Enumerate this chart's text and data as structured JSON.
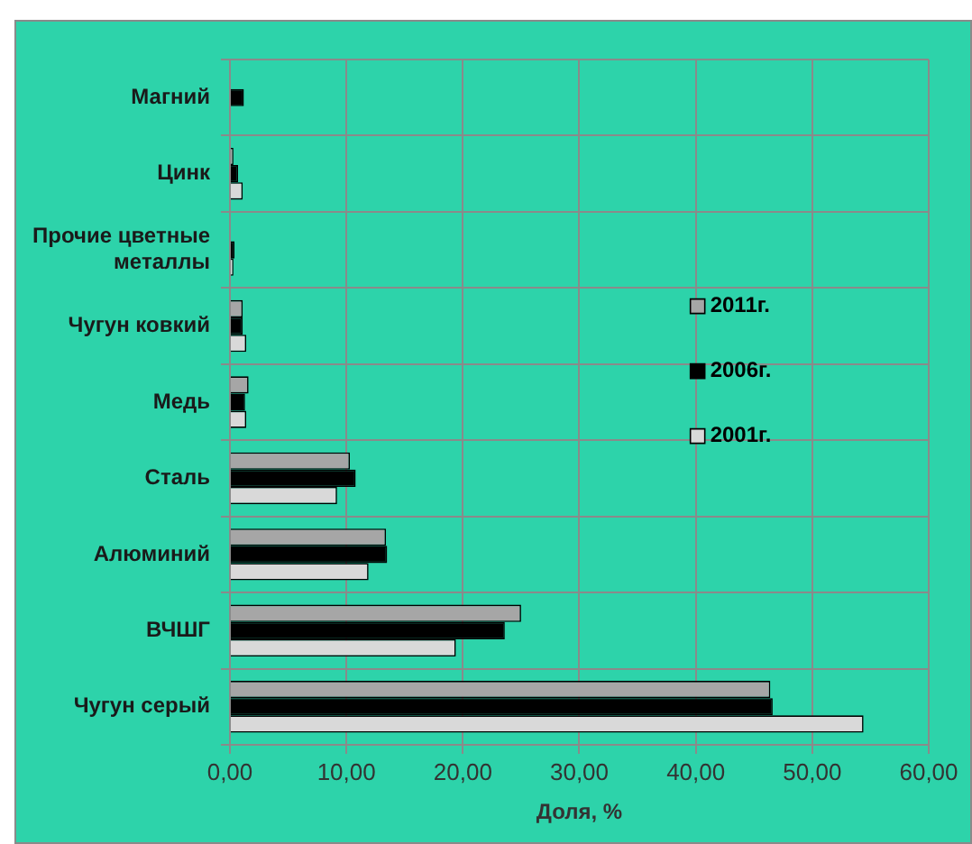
{
  "chart_data": {
    "type": "bar",
    "orientation": "horizontal",
    "xlabel": "Доля, %",
    "categories": [
      "Магний",
      "Цинк",
      "Прочие цветные металлы",
      "Чугун ковкий",
      "Медь",
      "Сталь",
      "Алюминий",
      "ВЧШГ",
      "Чугун серый"
    ],
    "series": [
      {
        "name": "2011г.",
        "color": "#a6a6a6",
        "values": [
          null,
          0.3,
          0,
          1.1,
          1.6,
          10.3,
          13.4,
          25.0,
          46.4
        ]
      },
      {
        "name": "2006г.",
        "color": "#000000",
        "values": [
          1.2,
          0.7,
          0.4,
          1.1,
          1.3,
          10.8,
          13.5,
          23.6,
          46.6
        ]
      },
      {
        "name": "2001г.",
        "color": "#d9d9d9",
        "values": [
          null,
          1.1,
          0.3,
          1.4,
          1.4,
          9.2,
          11.9,
          19.4,
          54.4
        ]
      }
    ],
    "xlim": [
      0,
      60
    ],
    "xticks": [
      {
        "value": 0,
        "label": "0,00"
      },
      {
        "value": 10,
        "label": "10,00"
      },
      {
        "value": 20,
        "label": "20,00"
      },
      {
        "value": 30,
        "label": "30,00"
      },
      {
        "value": 40,
        "label": "40,00"
      },
      {
        "value": 50,
        "label": "50,00"
      },
      {
        "value": 60,
        "label": "60,00"
      }
    ],
    "grid": true,
    "legend": "right"
  }
}
